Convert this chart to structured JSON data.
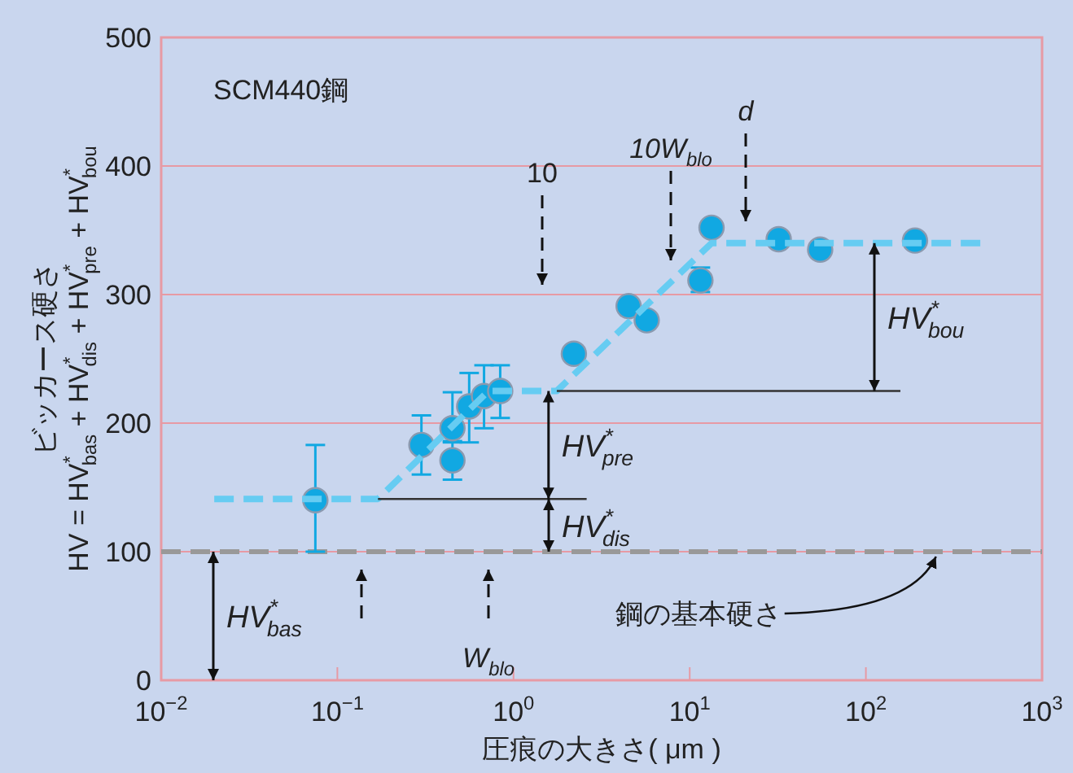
{
  "chart_data": {
    "type": "scatter",
    "xlabel": "圧痕の大きさ( μm )",
    "ylabel": "ビッカース硬さ\nHV = HV$^{*}$$_{bas}$ + HV$^{*}$$_{dis}$ + HV$^{*}$$_{pre}$ + HV$^{*}$$_{bou}$",
    "log": "x",
    "xlim": [
      0.01,
      1000
    ],
    "ylim": [
      0,
      500
    ],
    "xticks": [
      {
        "value": 0.01,
        "label": "10$^{−2}$"
      },
      {
        "value": 0.1,
        "label": "10$^{−1}$"
      },
      {
        "value": 1,
        "label": "10$^{0}$"
      },
      {
        "value": 10,
        "label": "10$^{1}$"
      },
      {
        "value": 100,
        "label": "10$^{2}$"
      },
      {
        "value": 1000,
        "label": "10$^{3}$"
      }
    ],
    "yticks": [
      0,
      100,
      200,
      300,
      400,
      500
    ],
    "grid": "y",
    "series": [
      {
        "color": "#11a8e2",
        "x": [
          0.075,
          0.3,
          0.45,
          0.45,
          0.56,
          0.68,
          0.84,
          2.2,
          4.5,
          5.7,
          11.5,
          13.3,
          32,
          55,
          190
        ],
        "values": [
          140,
          183,
          171,
          196,
          213,
          221,
          225,
          254,
          291,
          280,
          311,
          352,
          343,
          335,
          342
        ],
        "marker": "circle",
        "errors": [
          [
            100,
            183
          ],
          [
            160,
            206
          ],
          [
            156,
            186
          ],
          [
            185,
            224
          ],
          [
            185,
            239
          ],
          [
            196,
            245
          ],
          [
            204,
            245
          ],
          5,
          5,
          5,
          [
            302,
            321
          ],
          null,
          null,
          null,
          null
        ]
      },
      {
        "type": "line",
        "color": "#66ccf2",
        "line_style": "dashed",
        "x": [
          0.02,
          0.17,
          0.72,
          1.76,
          13.3,
          450
        ],
        "values": [
          141,
          141,
          225,
          225,
          340,
          340
        ]
      },
      {
        "type": "line",
        "color": "#333333",
        "x": [
          0.17,
          2.6
        ],
        "values": [
          141,
          141
        ]
      },
      {
        "type": "line",
        "color": "#333333",
        "x": [
          1.76,
          157
        ],
        "values": [
          225,
          225
        ]
      }
    ],
    "ref_lines": [
      {
        "axis": "y",
        "value": 100,
        "color": "#999999",
        "line_style": "dashed"
      }
    ],
    "annotations": [
      "SCM440鋼",
      "10",
      "10W$_{blo}$",
      "d",
      "W$_{blo}$",
      "HV$^{*}$$_{bas}$",
      "HV$^{*}$$_{dis}$",
      {
        "text": "HV$^{*}$$_{pre}$",
        "x": 1.58,
        "y": 225
      },
      "HV$^{*}$$_{bou}$",
      {
        "text": "鋼の基本硬さ",
        "x": 250,
        "y": 100
      }
    ]
  }
}
